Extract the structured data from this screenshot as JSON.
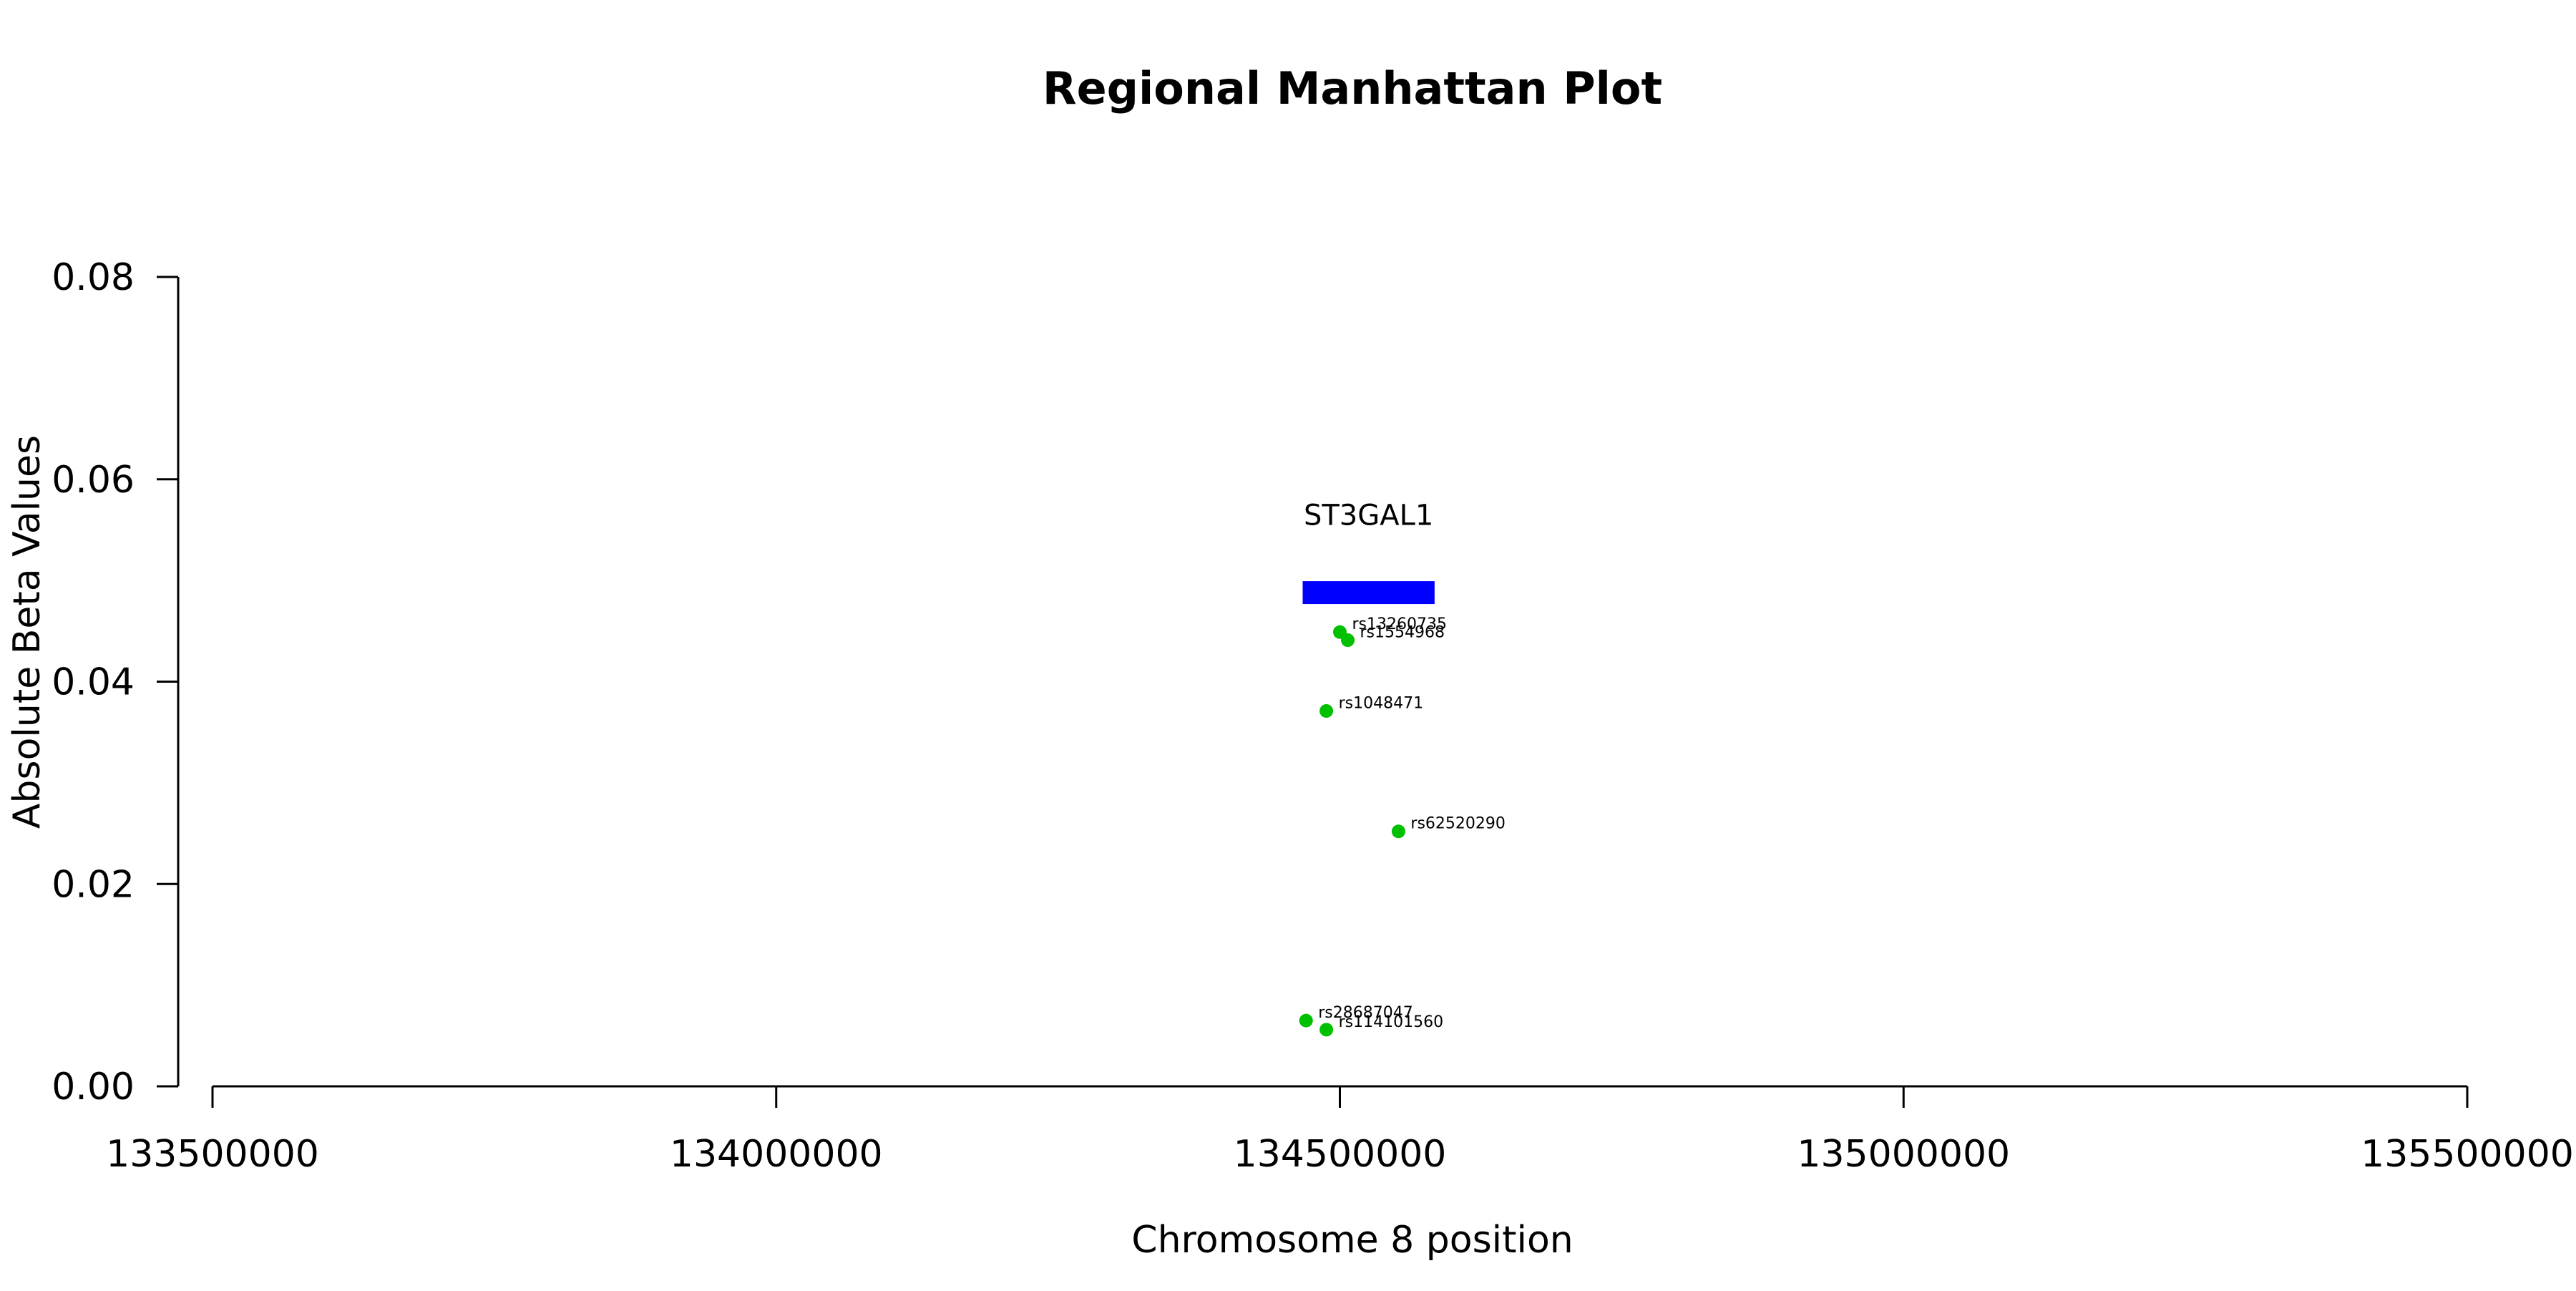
{
  "chart_data": {
    "type": "scatter",
    "title": "Regional Manhattan Plot",
    "xlabel": "Chromosome 8 position",
    "ylabel": "Absolute Beta Values",
    "xlim": [
      133500000,
      135500000
    ],
    "ylim": [
      0,
      0.08
    ],
    "x_ticks": [
      133500000,
      134000000,
      134500000,
      135000000,
      135500000
    ],
    "y_ticks": [
      "0.00",
      "0.02",
      "0.04",
      "0.06",
      "0.08"
    ],
    "grid": false,
    "gene": {
      "name": "ST3GAL1",
      "start": 134467000,
      "end": 134584000,
      "y": 0.0488,
      "color": "#0000ff"
    },
    "points_color": "#00c000",
    "points": [
      {
        "label": "rs13260735",
        "x": 134500000,
        "y": 0.0449
      },
      {
        "label": "rs1554968",
        "x": 134507000,
        "y": 0.0441
      },
      {
        "label": "rs1048471",
        "x": 134488000,
        "y": 0.0371
      },
      {
        "label": "rs62520290",
        "x": 134552000,
        "y": 0.0252
      },
      {
        "label": "rs28687047",
        "x": 134470000,
        "y": 0.0065
      },
      {
        "label": "rs114101560",
        "x": 134488000,
        "y": 0.0056
      }
    ]
  }
}
